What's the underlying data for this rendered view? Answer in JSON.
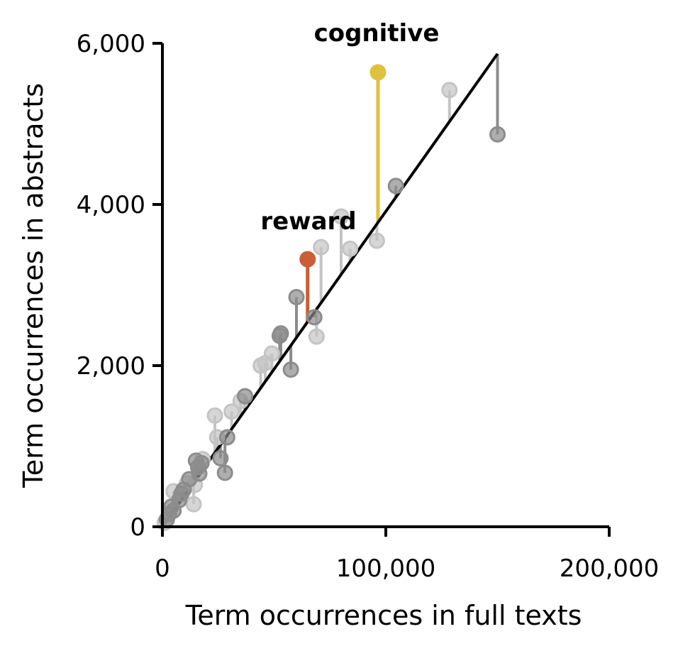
{
  "chart_data": {
    "type": "scatter",
    "xlabel": "Term occurrences in full texts",
    "ylabel": "Term occurrences in abstracts",
    "xlim": [
      0,
      200000
    ],
    "ylim": [
      0,
      6000
    ],
    "xticks": [
      0,
      100000,
      200000
    ],
    "xtick_labels": [
      "0",
      "100,000",
      "200,000"
    ],
    "yticks": [
      0,
      2000,
      4000,
      6000
    ],
    "ytick_labels": [
      "0",
      "2,000",
      "4,000",
      "6,000"
    ],
    "grid": false,
    "legend": "none",
    "fit_line": {
      "x": [
        0,
        150000
      ],
      "y": [
        0,
        5870
      ],
      "color": "#000000"
    },
    "annotations": [
      {
        "text": "cognitive",
        "x": 96500,
        "y": 6050
      },
      {
        "text": "reward",
        "x": 65000,
        "y": 3720
      }
    ],
    "colors": {
      "highlight_cognitive": "#dfc040",
      "highlight_reward": "#c85f36",
      "dark_gray": "#8c8c8c",
      "light_gray": "#c4c4c4"
    },
    "points": [
      {
        "label": "cognitive",
        "x": 96500,
        "y": 5640,
        "shade": "cognitive"
      },
      {
        "label": "reward",
        "x": 65000,
        "y": 3320,
        "shade": "reward"
      },
      {
        "x": 150000,
        "y": 4870,
        "shade": "dark"
      },
      {
        "x": 128500,
        "y": 5420,
        "shade": "light"
      },
      {
        "x": 104500,
        "y": 4230,
        "shade": "dark"
      },
      {
        "x": 96000,
        "y": 3550,
        "shade": "light"
      },
      {
        "x": 84000,
        "y": 3450,
        "shade": "light"
      },
      {
        "x": 80000,
        "y": 3850,
        "shade": "light"
      },
      {
        "x": 71000,
        "y": 3470,
        "shade": "light"
      },
      {
        "x": 69000,
        "y": 2360,
        "shade": "light"
      },
      {
        "x": 68000,
        "y": 2600,
        "shade": "dark"
      },
      {
        "x": 60000,
        "y": 2850,
        "shade": "dark"
      },
      {
        "x": 57500,
        "y": 1950,
        "shade": "dark"
      },
      {
        "x": 53000,
        "y": 2400,
        "shade": "dark"
      },
      {
        "x": 52500,
        "y": 2370,
        "shade": "dark"
      },
      {
        "x": 49000,
        "y": 2150,
        "shade": "light"
      },
      {
        "x": 46000,
        "y": 2030,
        "shade": "light"
      },
      {
        "x": 44000,
        "y": 2000,
        "shade": "light"
      },
      {
        "x": 37000,
        "y": 1620,
        "shade": "dark"
      },
      {
        "x": 35000,
        "y": 1560,
        "shade": "light"
      },
      {
        "x": 31000,
        "y": 1430,
        "shade": "light"
      },
      {
        "x": 29000,
        "y": 1110,
        "shade": "dark"
      },
      {
        "x": 28000,
        "y": 670,
        "shade": "dark"
      },
      {
        "x": 26000,
        "y": 850,
        "shade": "dark"
      },
      {
        "x": 24500,
        "y": 1110,
        "shade": "light"
      },
      {
        "x": 23500,
        "y": 1380,
        "shade": "light"
      },
      {
        "x": 18000,
        "y": 840,
        "shade": "light"
      },
      {
        "x": 17500,
        "y": 790,
        "shade": "dark"
      },
      {
        "x": 16500,
        "y": 660,
        "shade": "dark"
      },
      {
        "x": 16000,
        "y": 740,
        "shade": "dark"
      },
      {
        "x": 15000,
        "y": 820,
        "shade": "dark"
      },
      {
        "x": 14500,
        "y": 520,
        "shade": "light"
      },
      {
        "x": 14000,
        "y": 280,
        "shade": "light"
      },
      {
        "x": 12000,
        "y": 590,
        "shade": "dark"
      },
      {
        "x": 11000,
        "y": 540,
        "shade": "light"
      },
      {
        "x": 9500,
        "y": 460,
        "shade": "dark"
      },
      {
        "x": 8500,
        "y": 410,
        "shade": "dark"
      },
      {
        "x": 7500,
        "y": 330,
        "shade": "dark"
      },
      {
        "x": 5000,
        "y": 440,
        "shade": "light"
      },
      {
        "x": 5000,
        "y": 200,
        "shade": "dark"
      },
      {
        "x": 4000,
        "y": 250,
        "shade": "dark"
      },
      {
        "x": 3000,
        "y": 160,
        "shade": "dark"
      },
      {
        "x": 2000,
        "y": 90,
        "shade": "dark"
      },
      {
        "x": 1000,
        "y": 50,
        "shade": "light"
      }
    ]
  }
}
